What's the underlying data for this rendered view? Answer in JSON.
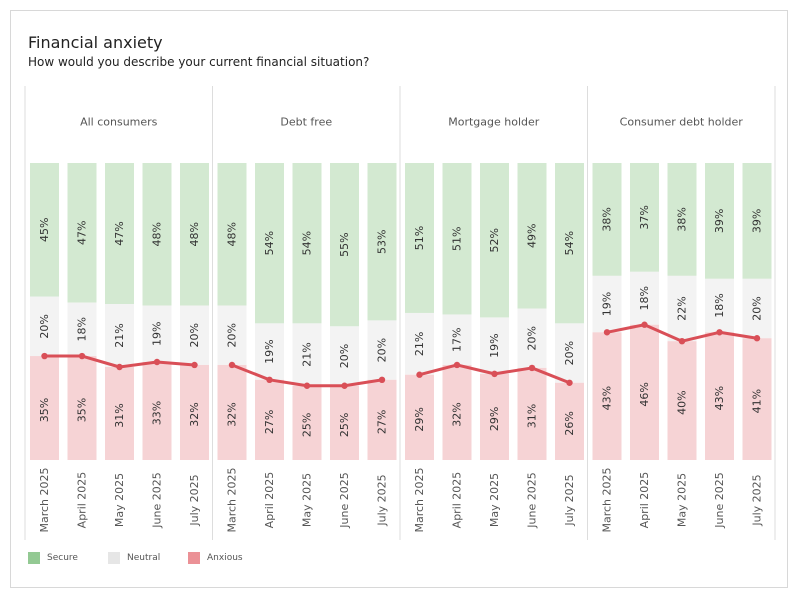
{
  "title": "Financial anxiety",
  "subtitle": "How would you describe your current financial situation?",
  "legend": [
    {
      "label": "Secure",
      "color": "#93c993"
    },
    {
      "label": "Neutral",
      "color": "#e6e6e6"
    },
    {
      "label": "Anxious",
      "color": "#eb9196"
    }
  ],
  "colors": {
    "secure_fill": "#d3e9d1",
    "neutral_fill": "#f3f3f3",
    "anxious_fill": "#f6d3d5",
    "anxious_line": "#d94f57"
  },
  "chart_data": {
    "type": "bar",
    "stacked": true,
    "normalized_percent": true,
    "months": [
      "March 2025",
      "April 2025",
      "May 2025",
      "June 2025",
      "July 2025"
    ],
    "panels": [
      {
        "name": "All consumers",
        "secure": [
          45,
          47,
          47,
          48,
          48
        ],
        "neutral": [
          20,
          18,
          21,
          19,
          20
        ],
        "anxious": [
          35,
          35,
          31,
          33,
          32
        ]
      },
      {
        "name": "Debt free",
        "secure": [
          48,
          54,
          54,
          55,
          53
        ],
        "neutral": [
          20,
          19,
          21,
          20,
          20
        ],
        "anxious": [
          32,
          27,
          25,
          25,
          27
        ]
      },
      {
        "name": "Mortgage holder",
        "secure": [
          51,
          51,
          52,
          49,
          54
        ],
        "neutral": [
          21,
          17,
          19,
          20,
          20
        ],
        "anxious": [
          29,
          32,
          29,
          31,
          26
        ]
      },
      {
        "name": "Consumer debt holder",
        "secure": [
          38,
          37,
          38,
          39,
          39
        ],
        "neutral": [
          19,
          18,
          22,
          18,
          20
        ],
        "anxious": [
          43,
          46,
          40,
          43,
          41
        ]
      }
    ],
    "overlay_line": "anxious",
    "grid": false,
    "legend_position": "bottom-left"
  }
}
